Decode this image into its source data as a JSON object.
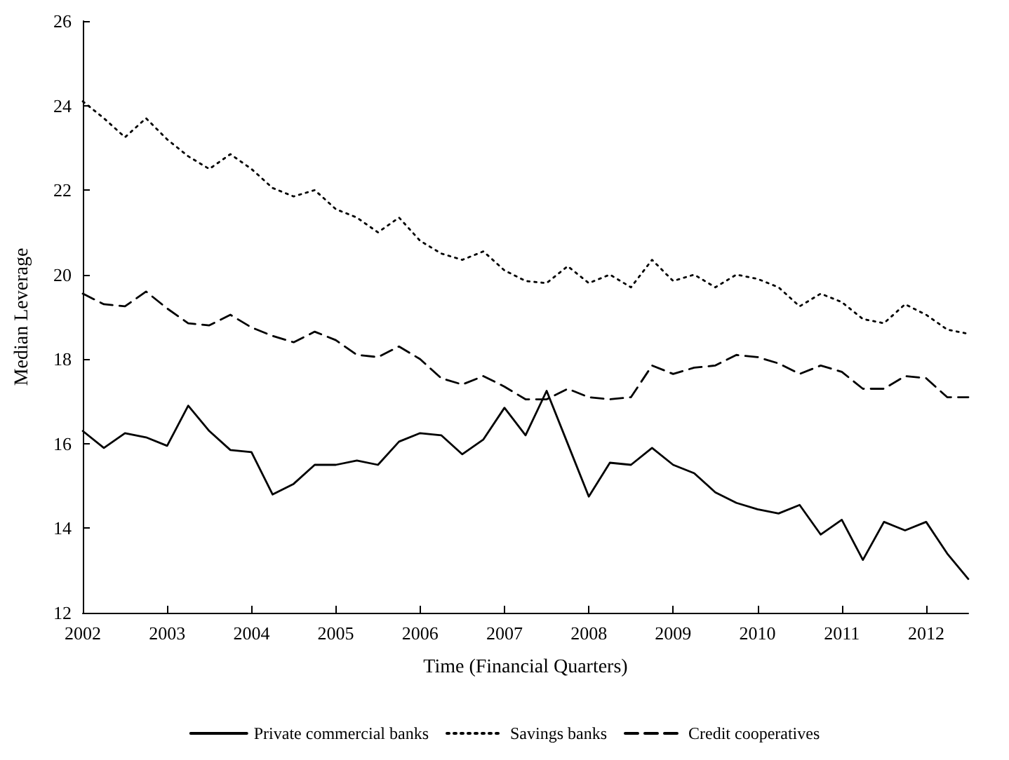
{
  "chart_data": {
    "type": "line",
    "xlabel": "Time (Financial Quarters)",
    "ylabel": "Median Leverage",
    "x": [
      2002,
      2002.25,
      2002.5,
      2002.75,
      2003,
      2003.25,
      2003.5,
      2003.75,
      2004,
      2004.25,
      2004.5,
      2004.75,
      2005,
      2005.25,
      2005.5,
      2005.75,
      2006,
      2006.25,
      2006.5,
      2006.75,
      2007,
      2007.25,
      2007.5,
      2007.75,
      2008,
      2008.25,
      2008.5,
      2008.75,
      2009,
      2009.25,
      2009.5,
      2009.75,
      2010,
      2010.25,
      2010.5,
      2010.75,
      2011,
      2011.25,
      2011.5,
      2011.75,
      2012,
      2012.25,
      2012.5
    ],
    "series": [
      {
        "name": "Private commercial banks",
        "color": "#000000",
        "line_style": "solid",
        "values": [
          16.3,
          15.9,
          16.25,
          16.15,
          15.95,
          16.9,
          16.3,
          15.85,
          15.8,
          14.8,
          15.05,
          15.5,
          15.5,
          15.6,
          15.5,
          16.05,
          16.25,
          16.2,
          15.75,
          16.1,
          16.85,
          16.2,
          17.25,
          16.0,
          14.75,
          15.55,
          15.5,
          15.9,
          15.5,
          15.3,
          14.85,
          14.6,
          14.45,
          14.35,
          14.55,
          13.85,
          14.2,
          13.25,
          14.15,
          13.95,
          14.15,
          13.4,
          12.8
        ]
      },
      {
        "name": "Savings banks",
        "color": "#000000",
        "line_style": "dotted",
        "values": [
          24.1,
          23.7,
          23.25,
          23.7,
          23.2,
          22.8,
          22.5,
          22.85,
          22.5,
          22.05,
          21.85,
          22.0,
          21.55,
          21.35,
          21.0,
          21.35,
          20.8,
          20.5,
          20.35,
          20.55,
          20.1,
          19.85,
          19.8,
          20.2,
          19.8,
          20.0,
          19.7,
          20.35,
          19.85,
          20.0,
          19.7,
          20.0,
          19.9,
          19.7,
          19.25,
          19.55,
          19.35,
          18.95,
          18.85,
          19.3,
          19.05,
          18.7,
          18.6
        ]
      },
      {
        "name": "Credit cooperatives",
        "color": "#000000",
        "line_style": "dashed",
        "values": [
          19.55,
          19.3,
          19.25,
          19.6,
          19.2,
          18.85,
          18.8,
          19.05,
          18.75,
          18.55,
          18.4,
          18.65,
          18.45,
          18.1,
          18.05,
          18.3,
          18.0,
          17.55,
          17.4,
          17.6,
          17.35,
          17.05,
          17.05,
          17.3,
          17.1,
          17.05,
          17.1,
          17.85,
          17.65,
          17.8,
          17.85,
          18.1,
          18.05,
          17.9,
          17.65,
          17.85,
          17.7,
          17.3,
          17.3,
          17.6,
          17.55,
          17.1,
          17.1
        ]
      }
    ],
    "xlim": [
      2002,
      2012.5
    ],
    "xticks": [
      2002,
      2003,
      2004,
      2005,
      2006,
      2007,
      2008,
      2009,
      2010,
      2011,
      2012
    ],
    "ylim": [
      12,
      26
    ],
    "yticks": [
      12,
      14,
      16,
      18,
      20,
      22,
      24,
      26
    ],
    "grid": false,
    "legend": "bottom",
    "marker": "none"
  }
}
